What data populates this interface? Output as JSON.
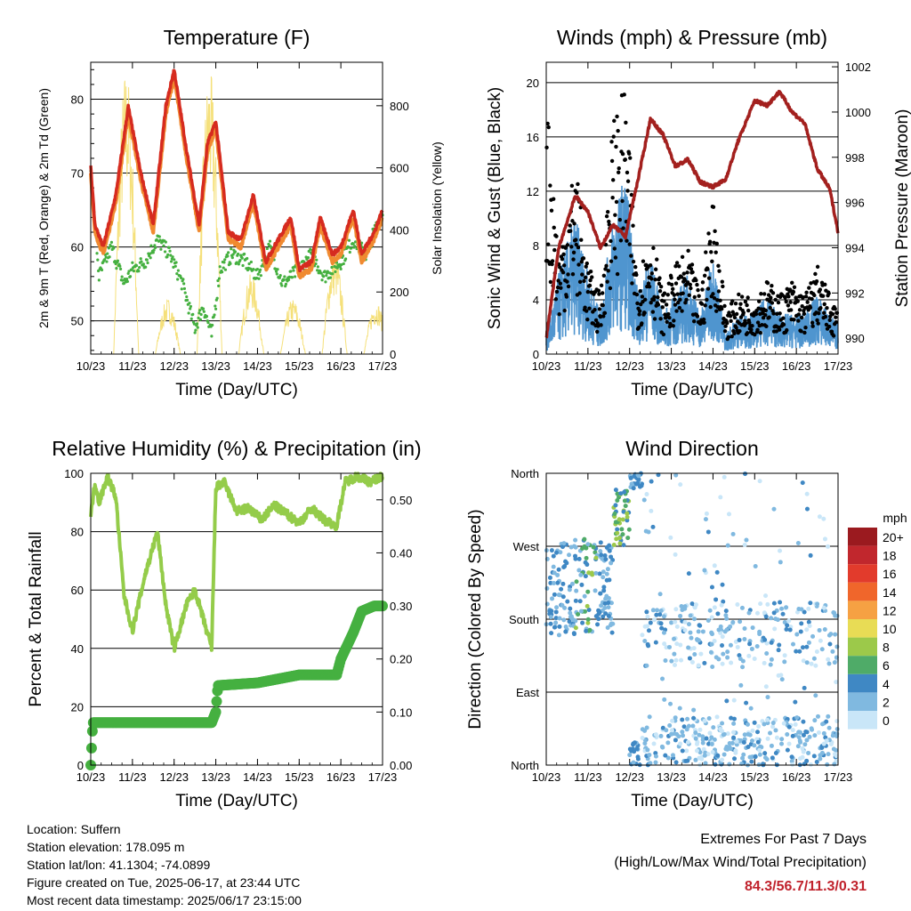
{
  "chart_data": [
    {
      "id": "temperature",
      "type": "line",
      "title": "Temperature (F)",
      "xlabel": "Time (Day/UTC)",
      "ylabel": "2m & 9m T (Red, Orange) & 2m Td (Green)",
      "ylabel_right": "Solar Insolation (Yellow)",
      "x_ticks": [
        "10/23",
        "11/23",
        "12/23",
        "13/23",
        "14/23",
        "15/23",
        "16/23",
        "17/23"
      ],
      "ylim": [
        45.5,
        85
      ],
      "y_ticks": [
        50,
        60,
        70,
        80
      ],
      "ylim_right": [
        0,
        940
      ],
      "y_ticks_right": [
        0,
        200,
        400,
        600,
        800
      ],
      "grid": "horizontal",
      "series": [
        {
          "name": "2m T",
          "color": "#d62b1f",
          "x": [
            10,
            10.1,
            10.3,
            10.6,
            10.9,
            11.2,
            11.5,
            11.8,
            12.0,
            12.3,
            12.6,
            12.8,
            13.0,
            13.3,
            13.6,
            13.9,
            14.2,
            14.5,
            14.8,
            15.0,
            15.3,
            15.5,
            15.8,
            16.0,
            16.3,
            16.5,
            16.8,
            17.0
          ],
          "values": [
            71,
            63,
            60,
            67,
            79,
            70,
            63,
            79,
            84,
            73,
            63,
            74,
            77,
            62,
            61,
            67,
            58,
            61,
            64,
            57,
            58,
            64,
            59,
            60,
            65,
            59,
            62,
            65
          ]
        },
        {
          "name": "9m T",
          "color": "#f08a30",
          "x": [
            10,
            10.1,
            10.3,
            10.6,
            10.9,
            11.2,
            11.5,
            11.8,
            12.0,
            12.3,
            12.6,
            12.8,
            13.0,
            13.3,
            13.6,
            13.9,
            14.2,
            14.5,
            14.8,
            15.0,
            15.3,
            15.5,
            15.8,
            16.0,
            16.3,
            16.5,
            16.8,
            17.0
          ],
          "values": [
            70,
            62,
            59,
            66,
            78,
            69,
            62,
            78,
            83,
            72,
            62,
            73,
            76,
            61,
            60,
            66,
            57,
            60,
            63,
            56,
            57,
            63,
            58,
            59,
            64,
            58,
            61,
            64
          ]
        },
        {
          "name": "2m Td",
          "color": "#45b040",
          "x": [
            10,
            10.2,
            10.5,
            10.8,
            11.0,
            11.3,
            11.6,
            11.9,
            12.2,
            12.5,
            12.7,
            12.9,
            13.1,
            13.4,
            13.7,
            14.0,
            14.3,
            14.6,
            15.0,
            15.3,
            15.6,
            16.0,
            16.3,
            16.6,
            17.0
          ],
          "values": [
            70,
            56,
            60,
            55,
            57,
            58,
            61,
            59,
            55,
            49,
            52,
            48,
            57,
            59,
            58,
            56,
            60,
            55,
            57,
            59,
            56,
            58,
            61,
            59,
            65
          ]
        },
        {
          "name": "Solar",
          "color": "#f5e07a",
          "peaks_x": [
            10.85,
            11.85,
            12.85,
            13.85,
            14.85,
            15.85,
            16.85
          ],
          "peaks": [
            930,
            180,
            920,
            260,
            180,
            330,
            170
          ]
        }
      ]
    },
    {
      "id": "winds",
      "type": "line",
      "title": "Winds (mph) & Pressure (mb)",
      "xlabel": "Time (Day/UTC)",
      "ylabel": "Sonic Wind & Gust (Blue, Black)",
      "ylabel_right": "Station Pressure (Maroon)",
      "x_ticks": [
        "10/23",
        "11/23",
        "12/23",
        "13/23",
        "14/23",
        "15/23",
        "16/23",
        "17/23"
      ],
      "ylim": [
        0,
        21.5
      ],
      "y_ticks": [
        0,
        4,
        8,
        12,
        16,
        20
      ],
      "ylim_right": [
        989.3,
        1002.2
      ],
      "y_ticks_right": [
        990,
        992,
        994,
        996,
        998,
        1000,
        1002
      ],
      "grid": "horizontal",
      "series": [
        {
          "name": "Pressure",
          "color": "#a3201e",
          "x": [
            10,
            10.3,
            10.7,
            11.0,
            11.3,
            11.6,
            11.9,
            12.2,
            12.5,
            12.8,
            13.1,
            13.4,
            13.7,
            14.0,
            14.3,
            14.6,
            15.0,
            15.3,
            15.6,
            15.9,
            16.2,
            16.5,
            16.8,
            17.0
          ],
          "values": [
            990,
            994,
            996.3,
            995.6,
            994,
            995,
            994.5,
            997,
            999.7,
            999,
            997.6,
            997.9,
            996.9,
            996.7,
            997,
            998.7,
            1000.5,
            1000.3,
            1000.9,
            1000,
            999.5,
            997.5,
            996.6,
            994.7
          ]
        },
        {
          "name": "Wind",
          "color": "#4f95cf",
          "x": [
            10,
            10.3,
            10.7,
            11.0,
            11.3,
            11.6,
            11.9,
            12.2,
            12.5,
            12.8,
            13.1,
            13.4,
            13.7,
            14.0,
            14.3,
            14.6,
            15.0,
            15.3,
            15.6,
            15.9,
            16.2,
            16.5,
            16.8,
            17.0
          ],
          "values": [
            1,
            4,
            7,
            4,
            2,
            7,
            9,
            3,
            5,
            2,
            3,
            4,
            2,
            5,
            1,
            2,
            2,
            3,
            2,
            2,
            2,
            3,
            2,
            1.5
          ]
        },
        {
          "name": "Gust",
          "color": "#000000",
          "x": [
            10,
            10.3,
            10.7,
            11.0,
            11.3,
            11.6,
            11.9,
            12.2,
            12.5,
            12.8,
            13.1,
            13.4,
            13.7,
            14.0,
            14.3,
            14.6,
            15.0,
            15.3,
            15.6,
            15.9,
            16.2,
            16.5,
            16.8,
            17.0
          ],
          "values": [
            18,
            7,
            13,
            6,
            4,
            16,
            18,
            5,
            9,
            4,
            6,
            7,
            4,
            11,
            3,
            4,
            4,
            5,
            4,
            5,
            4,
            6,
            4,
            3
          ]
        }
      ]
    },
    {
      "id": "rh",
      "type": "line",
      "title": "Relative Humidity (%) & Precipitation (in)",
      "xlabel": "Time (Day/UTC)",
      "ylabel": "Percent & Total Rainfall",
      "x_ticks": [
        "10/23",
        "11/23",
        "12/23",
        "13/23",
        "14/23",
        "15/23",
        "16/23",
        "17/23"
      ],
      "ylim": [
        0,
        100
      ],
      "y_ticks": [
        0,
        20,
        40,
        60,
        80,
        100
      ],
      "ylim_right": [
        0,
        0.55
      ],
      "y_ticks_right": [
        "0.00",
        "0.10",
        "0.20",
        "0.30",
        "0.40",
        "0.50"
      ],
      "grid": "horizontal",
      "series": [
        {
          "name": "RH",
          "color": "#94cc4a",
          "x": [
            10,
            10.1,
            10.2,
            10.4,
            10.6,
            10.8,
            11.0,
            11.3,
            11.6,
            11.8,
            12.0,
            12.3,
            12.5,
            12.7,
            12.9,
            13.0,
            13.2,
            13.5,
            13.8,
            14.1,
            14.4,
            14.7,
            15.0,
            15.3,
            15.6,
            15.9,
            16.1,
            16.4,
            16.7,
            17.0
          ],
          "values": [
            85,
            97,
            90,
            99,
            92,
            58,
            46,
            65,
            80,
            55,
            40,
            55,
            60,
            50,
            40,
            95,
            97,
            87,
            88,
            84,
            89,
            86,
            83,
            88,
            84,
            82,
            97,
            99,
            97,
            99
          ]
        },
        {
          "name": "Precip",
          "color": "#45b040",
          "x": [
            10,
            10.05,
            11,
            12,
            12.9,
            13.0,
            13.05,
            14,
            15,
            15.9,
            16.0,
            16.3,
            16.5,
            16.8,
            17.0
          ],
          "values": [
            0,
            0.08,
            0.08,
            0.08,
            0.08,
            0.1,
            0.15,
            0.155,
            0.17,
            0.17,
            0.2,
            0.25,
            0.29,
            0.3,
            0.3
          ]
        }
      ]
    },
    {
      "id": "direction",
      "type": "scatter",
      "title": "Wind Direction",
      "xlabel": "Time (Day/UTC)",
      "ylabel": "Direction (Colored By Speed)",
      "x_ticks": [
        "10/23",
        "11/23",
        "12/23",
        "13/23",
        "14/23",
        "15/23",
        "16/23",
        "17/23"
      ],
      "y_ticks": [
        "North",
        "East",
        "South",
        "West",
        "North"
      ],
      "ylim": [
        0,
        360
      ],
      "grid": "horizontal",
      "legend_title": "mph",
      "legend_labels": [
        "20+",
        "18",
        "16",
        "14",
        "12",
        "10",
        "8",
        "6",
        "4",
        "2",
        "0"
      ],
      "legend_colors": [
        "#9b1a1f",
        "#c1272d",
        "#e23b2c",
        "#f0662b",
        "#f6a143",
        "#e8dc55",
        "#9cc94a",
        "#4fab68",
        "#3f88c4",
        "#80b9e0",
        "#c9e6f8"
      ]
    }
  ],
  "info": {
    "location": "Location: Suffern",
    "elevation": "Station elevation: 178.095 m",
    "latlon": "Station lat/lon: 41.1304; -74.0899",
    "created": "Figure created on Tue, 2025-06-17, at 23:44 UTC",
    "recent": "Most recent data timestamp: 2025/06/17 23:15:00"
  },
  "extremes": {
    "title": "Extremes For Past 7 Days",
    "subtitle": "(High/Low/Max Wind/Total Precipitation)",
    "values": "84.3/56.7/11.3/0.31"
  }
}
